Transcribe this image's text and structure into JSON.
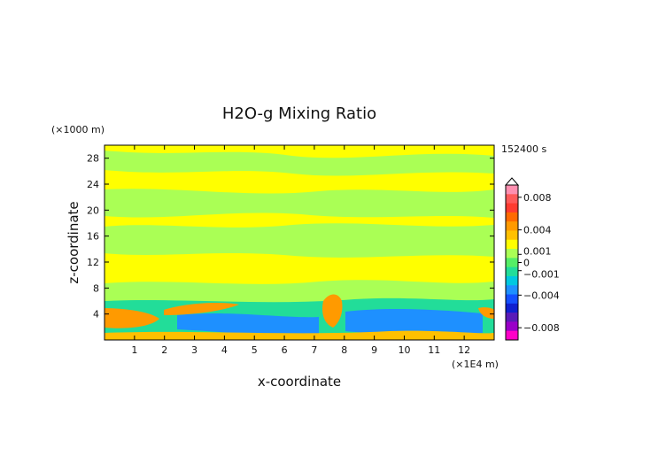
{
  "chart_data": {
    "type": "heatmap",
    "title": "H2O-g Mixing Ratio",
    "xlabel": "x-coordinate",
    "ylabel": "z-coordinate",
    "x_unit": "(×1E4 m)",
    "y_unit": "(×1000 m)",
    "time_label": "152400 s",
    "xlim": [
      0,
      13
    ],
    "ylim": [
      0,
      30
    ],
    "x_ticks": [
      "1",
      "2",
      "3",
      "4",
      "5",
      "6",
      "7",
      "8",
      "9",
      "10",
      "11",
      "12"
    ],
    "y_ticks": [
      "4",
      "8",
      "12",
      "16",
      "20",
      "24",
      "28"
    ],
    "colorbar": {
      "labels": [
        "0.008",
        "0.004",
        "0.001",
        "0",
        "−0.001",
        "−0.004",
        "−0.008"
      ],
      "values": [
        0.008,
        0.004,
        0.001,
        0,
        -0.001,
        -0.004,
        -0.008
      ],
      "colors": [
        "#ff8fb0",
        "#ff5a5a",
        "#ff3b30",
        "#ff6a00",
        "#ff9a00",
        "#ffc000",
        "#ffff00",
        "#aaff55",
        "#55ee66",
        "#22dd99",
        "#00c8e0",
        "#1e90ff",
        "#1450ff",
        "#1020d0",
        "#5a1ab8",
        "#9a00c8",
        "#ff00c8"
      ]
    },
    "regions": [
      {
        "kind": "band",
        "z": [
          25,
          28.5
        ],
        "color": "#aaff55"
      },
      {
        "kind": "band",
        "z": [
          20,
          23.5
        ],
        "color": "#aaff55"
      },
      {
        "kind": "band",
        "z": [
          13.5,
          19
        ],
        "color": "#aaff55"
      },
      {
        "kind": "band",
        "z": [
          6,
          9.5
        ],
        "color": "#aaff55"
      },
      {
        "kind": "band",
        "z": [
          1,
          6
        ],
        "color": "#22dd99"
      },
      {
        "kind": "band",
        "z": [
          1,
          5
        ],
        "color": "#1e90ff"
      },
      {
        "kind": "band",
        "z": [
          3.5,
          6
        ],
        "color": "#ff9a00"
      },
      {
        "kind": "band",
        "z": [
          0,
          1.5
        ],
        "color": "#ffc000"
      }
    ]
  }
}
